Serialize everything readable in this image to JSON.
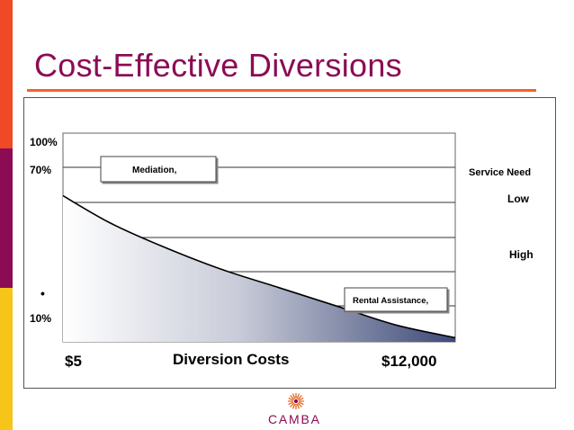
{
  "slide": {
    "title": "Cost-Effective Diversions",
    "logo_text": "CAMBA",
    "colors": {
      "title": "#8b0c55",
      "accent_orange": "#f2642b",
      "bar_red": "#ef4a25",
      "bar_maroon": "#8b0c55",
      "bar_yellow": "#f7c41a",
      "curve_fill_dark": "#3d4a78"
    }
  },
  "chart_data": {
    "type": "area",
    "title": "",
    "xlabel": "Diversion Costs",
    "ylabel": "",
    "x_tick_labels": [
      "$5",
      "$12,000"
    ],
    "y_tick_labels": [
      "100%",
      "70%",
      "10%"
    ],
    "y_marker": "•",
    "xlim": [
      0,
      1
    ],
    "ylim": [
      0,
      100
    ],
    "grid": true,
    "series": [
      {
        "x": [
          0,
          0.12,
          0.25,
          0.4,
          0.55,
          0.7,
          0.85,
          1.0
        ],
        "values": [
          70,
          57,
          46,
          35,
          26,
          17,
          8,
          2
        ]
      }
    ],
    "annotations": [
      {
        "text": "Mediation,",
        "placement": "upper-left"
      },
      {
        "text": "Rental Assistance,",
        "placement": "lower-right"
      }
    ],
    "right_labels": {
      "heading": "Service Need",
      "low": "Low",
      "high": "High"
    }
  }
}
